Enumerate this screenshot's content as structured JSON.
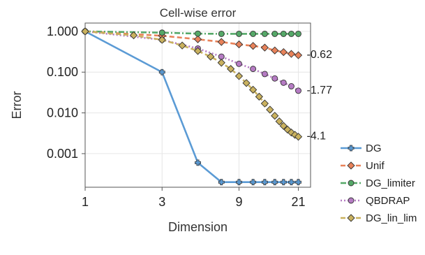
{
  "chart_data": {
    "type": "line",
    "title": "Cell-wise error",
    "xlabel": "Dimension",
    "ylabel": "Error",
    "x_scale": "log",
    "y_scale": "log",
    "xlim": [
      1,
      25
    ],
    "ylim": [
      0.00015,
      1.6
    ],
    "x_ticks": [
      1,
      3,
      9,
      21
    ],
    "x_tick_labels": [
      "1",
      "3",
      "9",
      "21"
    ],
    "y_ticks": [
      1,
      0.1,
      0.01,
      0.001
    ],
    "y_tick_labels": [
      "1.000",
      "0.100",
      "0.010",
      "0.001"
    ],
    "grid": true,
    "legend_position": "right",
    "series": [
      {
        "name": "DG",
        "color": "#5b9bd5",
        "line_style": "solid",
        "marker": "plus",
        "x": [
          1,
          3,
          5,
          7,
          9,
          11,
          13,
          15,
          17,
          19,
          21
        ],
        "y": [
          1.0,
          0.1,
          0.0006,
          0.0002,
          0.0002,
          0.0002,
          0.0002,
          0.0002,
          0.0002,
          0.0002,
          0.0002
        ]
      },
      {
        "name": "Unif",
        "color": "#e8825a",
        "line_style": "dashed",
        "marker": "diamond",
        "x": [
          1,
          3,
          5,
          7,
          9,
          11,
          13,
          15,
          17,
          19,
          21
        ],
        "y": [
          1.0,
          0.78,
          0.64,
          0.55,
          0.48,
          0.44,
          0.4,
          0.34,
          0.31,
          0.28,
          0.26
        ]
      },
      {
        "name": "DG_limiter",
        "color": "#55a868",
        "line_style": "dashdot",
        "marker": "circle",
        "x": [
          1,
          3,
          5,
          7,
          9,
          11,
          13,
          15,
          17,
          19,
          21
        ],
        "y": [
          1.0,
          0.93,
          0.88,
          0.87,
          0.87,
          0.87,
          0.87,
          0.87,
          0.87,
          0.87,
          0.87
        ]
      },
      {
        "name": "QBDRAP",
        "color": "#b57bc3",
        "line_style": "dotted",
        "marker": "circle",
        "x": [
          1,
          3,
          5,
          7,
          9,
          11,
          13,
          15,
          17,
          19,
          21
        ],
        "y": [
          1.0,
          0.62,
          0.38,
          0.24,
          0.16,
          0.12,
          0.09,
          0.07,
          0.055,
          0.045,
          0.035
        ]
      },
      {
        "name": "DG_lin_lim",
        "color": "#c9b15e",
        "line_style": "dashed",
        "marker": "diamond",
        "x": [
          1,
          2,
          3,
          4,
          5,
          6,
          7,
          8,
          9,
          10,
          11,
          12,
          13,
          14,
          15,
          16,
          17,
          18,
          19,
          20,
          21
        ],
        "y": [
          1.0,
          0.8,
          0.62,
          0.45,
          0.33,
          0.24,
          0.17,
          0.12,
          0.08,
          0.054,
          0.037,
          0.025,
          0.017,
          0.012,
          0.0085,
          0.0062,
          0.0048,
          0.0039,
          0.0033,
          0.0029,
          0.0026
        ]
      }
    ],
    "annotations": [
      {
        "text": "-0.62",
        "x": 21,
        "y": 0.26
      },
      {
        "text": "-1.77",
        "x": 21,
        "y": 0.035
      },
      {
        "text": "-4.1",
        "x": 21,
        "y": 0.0026
      }
    ]
  }
}
